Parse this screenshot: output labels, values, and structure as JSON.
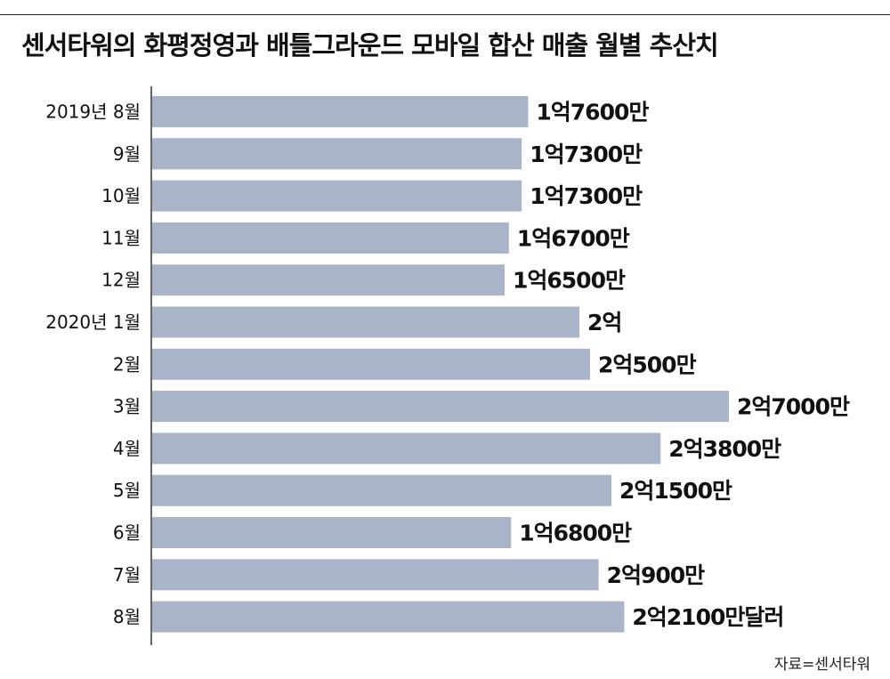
{
  "title": "센서타워의 화평정영과 배틀그라운드 모바일 합산 매출 월별 추산치",
  "source": "자료=센서타워",
  "colors": {
    "bar": "#a9b4c8",
    "axis": "#333333",
    "text": "#111111"
  },
  "chart_data": {
    "type": "bar",
    "orientation": "horizontal",
    "title": "센서타워의 화평정영과 배틀그라운드 모바일 합산 매출 월별 추산치",
    "categories": [
      "2019년 8월",
      "9월",
      "10월",
      "11월",
      "12월",
      "2020년 1월",
      "2월",
      "3월",
      "4월",
      "5월",
      "6월",
      "7월",
      "8월"
    ],
    "values": [
      17600,
      17300,
      17300,
      16700,
      16500,
      20000,
      20500,
      27000,
      23800,
      21500,
      16800,
      20900,
      22100
    ],
    "value_unit": "만달러",
    "data_labels": [
      "1억7600만",
      "1억7300만",
      "1억7300만",
      "1억6700만",
      "1억6500만",
      "2억",
      "2억500만",
      "2억7000만",
      "2억3800만",
      "2억1500만",
      "1억6800만",
      "2억900만",
      "2억2100만달러"
    ],
    "xlim": [
      0,
      27000
    ],
    "grid": false,
    "legend": "none"
  }
}
